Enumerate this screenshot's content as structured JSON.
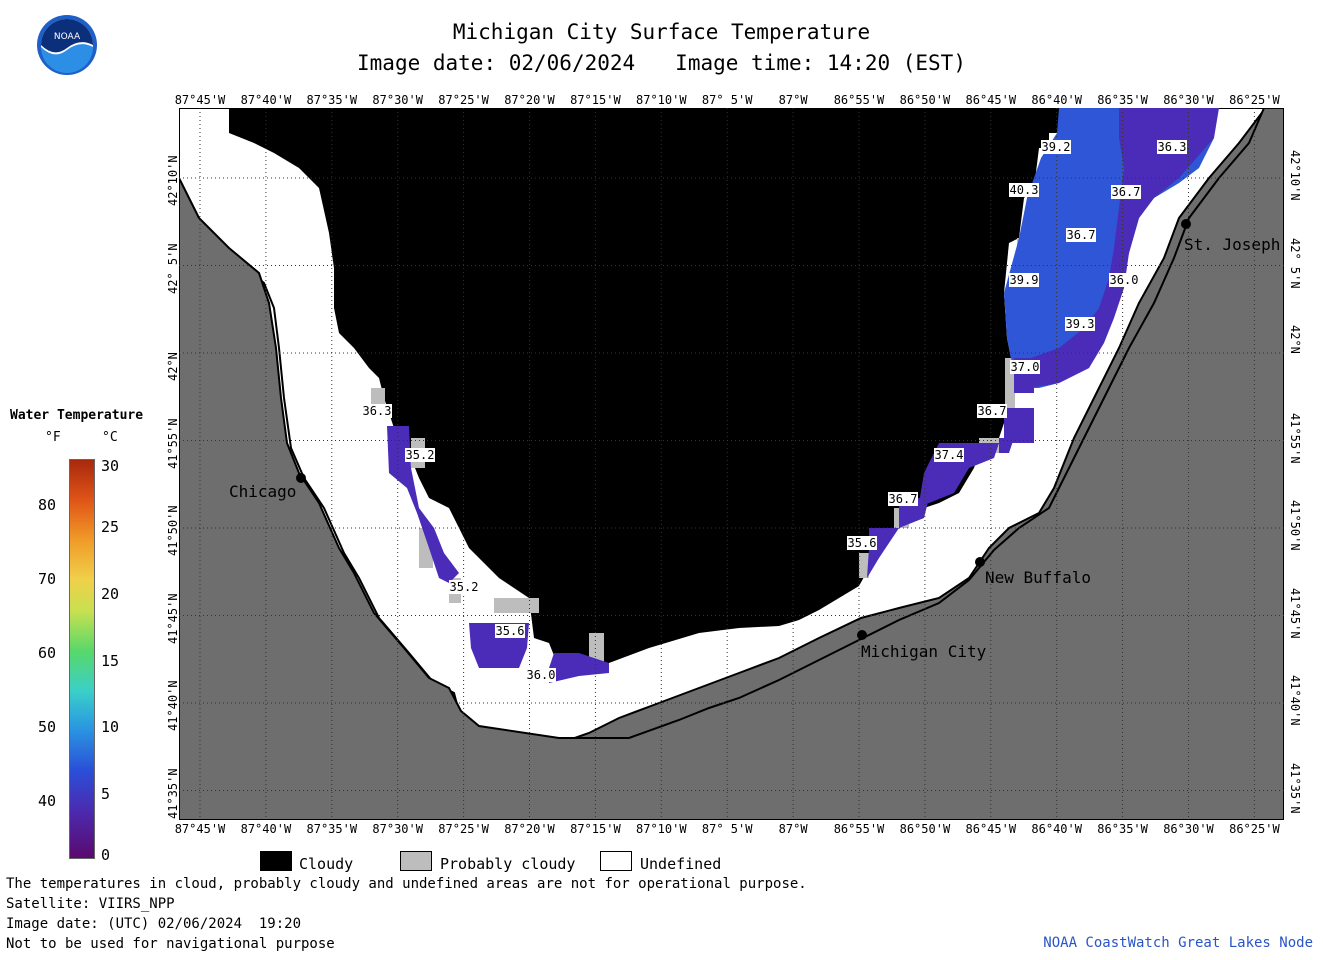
{
  "header": {
    "title": "Michigan City Surface Temperature",
    "image_date": "Image date: 02/06/2024",
    "image_time": "Image time: 14:20 (EST)"
  },
  "logo": {
    "text": "NOAA",
    "icon": "noaa-logo-icon"
  },
  "axes": {
    "lon_ticks": [
      "87°45'W",
      "87°40'W",
      "87°35'W",
      "87°30'W",
      "87°25'W",
      "87°20'W",
      "87°15'W",
      "87°10'W",
      "87° 5'W",
      "87°W",
      "86°55'W",
      "86°50'W",
      "86°45'W",
      "86°40'W",
      "86°35'W",
      "86°30'W",
      "86°25'W"
    ],
    "lat_ticks": [
      "42°10'N",
      "42° 5'N",
      "42°N",
      "41°55'N",
      "41°50'N",
      "41°45'N",
      "41°40'N",
      "41°35'N"
    ]
  },
  "places": [
    "Chicago",
    "St. Joseph",
    "New Buffalo",
    "Michigan City"
  ],
  "temperature_labels": [
    "39.2",
    "36.3",
    "40.3",
    "36.7",
    "36.7",
    "39.9",
    "36.0",
    "39.3",
    "37.0",
    "36.7",
    "36.3",
    "35.2",
    "37.4",
    "36.7",
    "35.6",
    "35.2",
    "35.6",
    "36.0"
  ],
  "colorbar": {
    "title": "Water Temperature",
    "unit_f": "°F",
    "unit_c": "°C",
    "f_ticks": [
      "80",
      "70",
      "60",
      "50",
      "40"
    ],
    "c_ticks": [
      "30",
      "25",
      "20",
      "15",
      "10",
      "5",
      "0"
    ]
  },
  "legend": {
    "cloudy": "Cloudy",
    "probably_cloudy": "Probably cloudy",
    "undefined": "Undefined"
  },
  "colors": {
    "land": "#6e6e6e",
    "cloud": "#000000",
    "prob_cloud": "#bdbdbd",
    "water_blue": "#2f56d6",
    "water_purple": "#4a2cb8",
    "credit": "#2a55c8"
  },
  "footer": {
    "line1": "The temperatures in cloud, probably cloudy and undefined areas are not for operational purpose.",
    "line2": "Satellite: VIIRS_NPP",
    "line3": "Image date: (UTC) 02/06/2024  19:20",
    "line4": "Not to be used for navigational purpose",
    "credit": "NOAA CoastWatch Great Lakes Node"
  }
}
